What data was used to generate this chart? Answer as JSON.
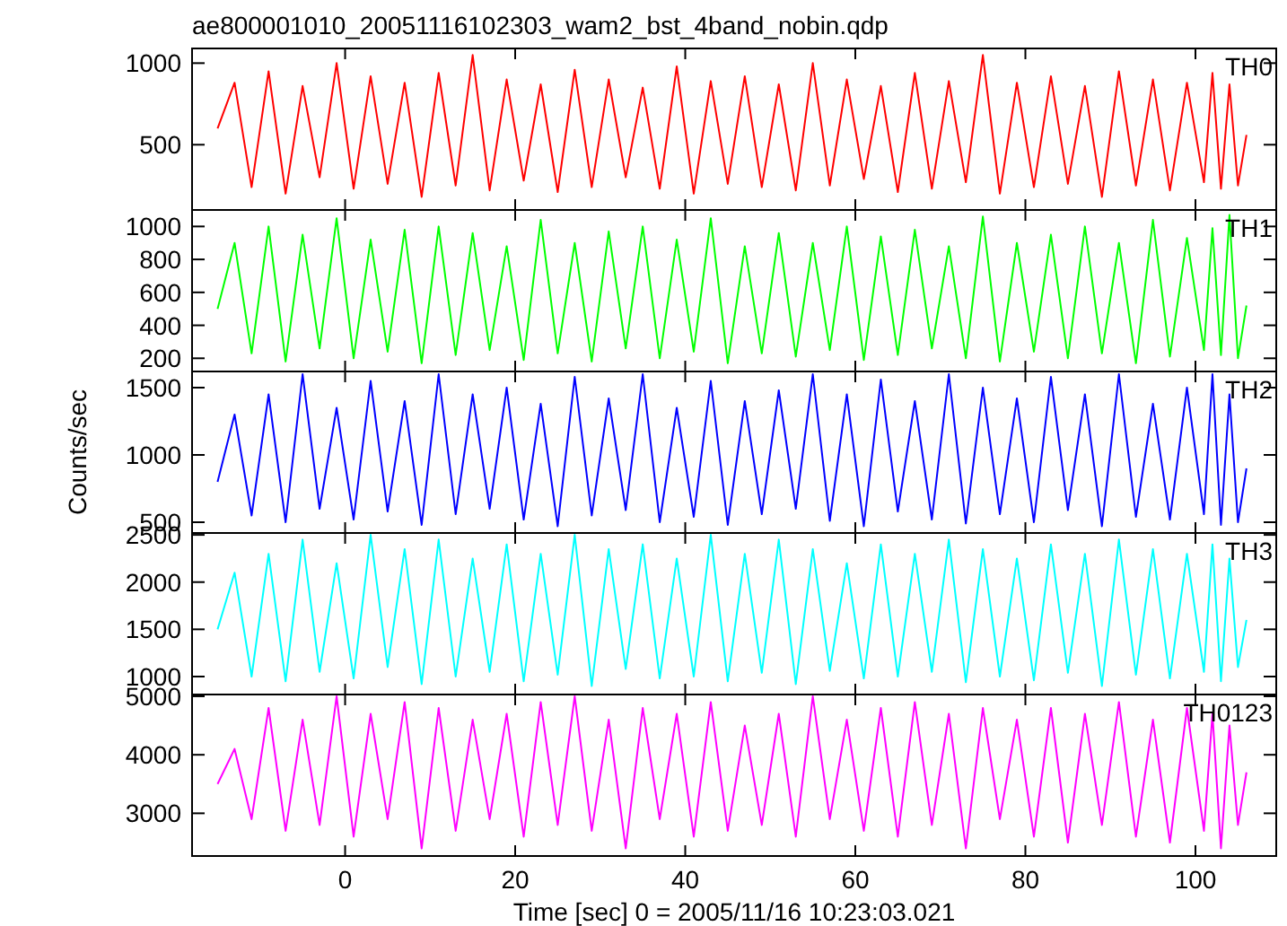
{
  "chart_data": [
    {
      "type": "line",
      "title": "ae800001010_20051116102303_wam2_bst_4band_nobin.qdp",
      "x": [
        -15,
        -13,
        -11,
        -9,
        -7,
        -5,
        -3,
        -1,
        1,
        3,
        5,
        7,
        9,
        11,
        13,
        15,
        17,
        19,
        21,
        23,
        25,
        27,
        29,
        31,
        33,
        35,
        37,
        39,
        41,
        43,
        45,
        47,
        49,
        51,
        53,
        55,
        57,
        59,
        61,
        63,
        65,
        67,
        69,
        71,
        73,
        75,
        77,
        79,
        81,
        83,
        85,
        87,
        89,
        91,
        93,
        95,
        97,
        99,
        101,
        102,
        103,
        104,
        105,
        106
      ],
      "xlim": [
        -18,
        109.5
      ],
      "xticks": [
        0,
        20,
        40,
        60,
        80,
        100
      ],
      "ylim": [
        100,
        1090
      ],
      "yticks": [
        500,
        1000
      ],
      "tick_labels": "y",
      "series": [
        {
          "name": "TH0",
          "color": "#ff0000",
          "values": [
            600,
            880,
            240,
            950,
            200,
            860,
            300,
            1000,
            230,
            920,
            260,
            880,
            180,
            940,
            250,
            1050,
            220,
            900,
            280,
            870,
            210,
            960,
            240,
            900,
            300,
            850,
            230,
            980,
            200,
            890,
            260,
            920,
            240,
            870,
            220,
            1000,
            250,
            900,
            290,
            860,
            210,
            940,
            230,
            890,
            270,
            1050,
            200,
            880,
            240,
            920,
            260,
            860,
            180,
            950,
            250,
            900,
            220,
            880,
            270,
            940,
            230,
            870,
            250,
            560
          ]
        }
      ]
    },
    {
      "type": "line",
      "x": [
        -15,
        -13,
        -11,
        -9,
        -7,
        -5,
        -3,
        -1,
        1,
        3,
        5,
        7,
        9,
        11,
        13,
        15,
        17,
        19,
        21,
        23,
        25,
        27,
        29,
        31,
        33,
        35,
        37,
        39,
        41,
        43,
        45,
        47,
        49,
        51,
        53,
        55,
        57,
        59,
        61,
        63,
        65,
        67,
        69,
        71,
        73,
        75,
        77,
        79,
        81,
        83,
        85,
        87,
        89,
        91,
        93,
        95,
        97,
        99,
        101,
        102,
        103,
        104,
        105,
        106
      ],
      "xlim": [
        -18,
        109.5
      ],
      "xticks": [
        0,
        20,
        40,
        60,
        80,
        100
      ],
      "ylim": [
        120,
        1100
      ],
      "yticks": [
        200,
        400,
        600,
        800,
        1000
      ],
      "tick_labels": "y",
      "series": [
        {
          "name": "TH1",
          "color": "#00ff00",
          "values": [
            500,
            900,
            230,
            1000,
            180,
            950,
            260,
            1050,
            200,
            920,
            240,
            980,
            170,
            1000,
            220,
            960,
            250,
            880,
            190,
            1040,
            230,
            900,
            180,
            970,
            260,
            1000,
            200,
            920,
            240,
            1050,
            170,
            880,
            230,
            960,
            210,
            900,
            250,
            1000,
            190,
            940,
            220,
            980,
            260,
            880,
            200,
            1060,
            180,
            900,
            240,
            950,
            200,
            1000,
            230,
            900,
            170,
            1040,
            210,
            930,
            250,
            990,
            220,
            1070,
            200,
            520
          ]
        }
      ]
    },
    {
      "type": "line",
      "ylabel": "Counts/sec",
      "x": [
        -15,
        -13,
        -11,
        -9,
        -7,
        -5,
        -3,
        -1,
        1,
        3,
        5,
        7,
        9,
        11,
        13,
        15,
        17,
        19,
        21,
        23,
        25,
        27,
        29,
        31,
        33,
        35,
        37,
        39,
        41,
        43,
        45,
        47,
        49,
        51,
        53,
        55,
        57,
        59,
        61,
        63,
        65,
        67,
        69,
        71,
        73,
        75,
        77,
        79,
        81,
        83,
        85,
        87,
        89,
        91,
        93,
        95,
        97,
        99,
        101,
        102,
        103,
        104,
        105,
        106
      ],
      "xlim": [
        -18,
        109.5
      ],
      "xticks": [
        0,
        20,
        40,
        60,
        80,
        100
      ],
      "ylim": [
        420,
        1620
      ],
      "yticks": [
        500,
        1000,
        1500
      ],
      "tick_labels": "y",
      "series": [
        {
          "name": "TH2",
          "color": "#0000ff",
          "values": [
            800,
            1300,
            550,
            1450,
            500,
            1600,
            600,
            1350,
            520,
            1550,
            580,
            1400,
            480,
            1600,
            560,
            1450,
            600,
            1500,
            520,
            1380,
            470,
            1580,
            550,
            1420,
            590,
            1600,
            500,
            1350,
            540,
            1550,
            480,
            1400,
            560,
            1480,
            600,
            1600,
            510,
            1450,
            470,
            1560,
            580,
            1400,
            520,
            1600,
            490,
            1500,
            560,
            1420,
            500,
            1580,
            590,
            1450,
            470,
            1600,
            540,
            1380,
            520,
            1500,
            560,
            1600,
            480,
            1450,
            500,
            900
          ]
        }
      ]
    },
    {
      "type": "line",
      "x": [
        -15,
        -13,
        -11,
        -9,
        -7,
        -5,
        -3,
        -1,
        1,
        3,
        5,
        7,
        9,
        11,
        13,
        15,
        17,
        19,
        21,
        23,
        25,
        27,
        29,
        31,
        33,
        35,
        37,
        39,
        41,
        43,
        45,
        47,
        49,
        51,
        53,
        55,
        57,
        59,
        61,
        63,
        65,
        67,
        69,
        71,
        73,
        75,
        77,
        79,
        81,
        83,
        85,
        87,
        89,
        91,
        93,
        95,
        97,
        99,
        101,
        102,
        103,
        104,
        105,
        106
      ],
      "xlim": [
        -18,
        109.5
      ],
      "xticks": [
        0,
        20,
        40,
        60,
        80,
        100
      ],
      "ylim": [
        810,
        2520
      ],
      "yticks": [
        1000,
        1500,
        2000,
        2500
      ],
      "tick_labels": "y",
      "series": [
        {
          "name": "TH3",
          "color": "#00ffff",
          "values": [
            1500,
            2100,
            1000,
            2300,
            950,
            2450,
            1050,
            2200,
            980,
            2500,
            1100,
            2350,
            920,
            2450,
            1000,
            2250,
            1050,
            2400,
            950,
            2300,
            1020,
            2500,
            900,
            2350,
            1080,
            2400,
            980,
            2250,
            1000,
            2500,
            950,
            2300,
            1040,
            2450,
            920,
            2350,
            1060,
            2200,
            980,
            2400,
            1000,
            2300,
            1050,
            2450,
            940,
            2350,
            1000,
            2250,
            960,
            2400,
            1040,
            2300,
            900,
            2450,
            1020,
            2350,
            980,
            2300,
            1050,
            2400,
            950,
            2250,
            1100,
            1600
          ]
        }
      ]
    },
    {
      "type": "line",
      "xlabel": "Time [sec] 0 = 2005/11/16 10:23:03.021",
      "x": [
        -15,
        -13,
        -11,
        -9,
        -7,
        -5,
        -3,
        -1,
        1,
        3,
        5,
        7,
        9,
        11,
        13,
        15,
        17,
        19,
        21,
        23,
        25,
        27,
        29,
        31,
        33,
        35,
        37,
        39,
        41,
        43,
        45,
        47,
        49,
        51,
        53,
        55,
        57,
        59,
        61,
        63,
        65,
        67,
        69,
        71,
        73,
        75,
        77,
        79,
        81,
        83,
        85,
        87,
        89,
        91,
        93,
        95,
        97,
        99,
        101,
        102,
        103,
        104,
        105,
        106
      ],
      "xlim": [
        -18,
        109.5
      ],
      "xticks": [
        0,
        20,
        40,
        60,
        80,
        100
      ],
      "ylim": [
        2270,
        5030
      ],
      "yticks": [
        3000,
        4000,
        5000
      ],
      "series": [
        {
          "name": "TH0123",
          "color": "#ff00ff",
          "values": [
            3500,
            4100,
            2900,
            4800,
            2700,
            4600,
            2800,
            5000,
            2600,
            4700,
            2900,
            4900,
            2400,
            4800,
            2700,
            4600,
            2900,
            4700,
            2600,
            4900,
            2800,
            5000,
            2700,
            4600,
            2400,
            4800,
            2900,
            4700,
            2600,
            4900,
            2700,
            4500,
            2800,
            4700,
            2600,
            5000,
            2900,
            4600,
            2700,
            4800,
            2600,
            4900,
            2800,
            4700,
            2400,
            4800,
            2900,
            4600,
            2600,
            4800,
            2500,
            4700,
            2800,
            4900,
            2600,
            4600,
            2500,
            4800,
            2700,
            4700,
            2400,
            4500,
            2800,
            3700
          ]
        }
      ]
    }
  ]
}
